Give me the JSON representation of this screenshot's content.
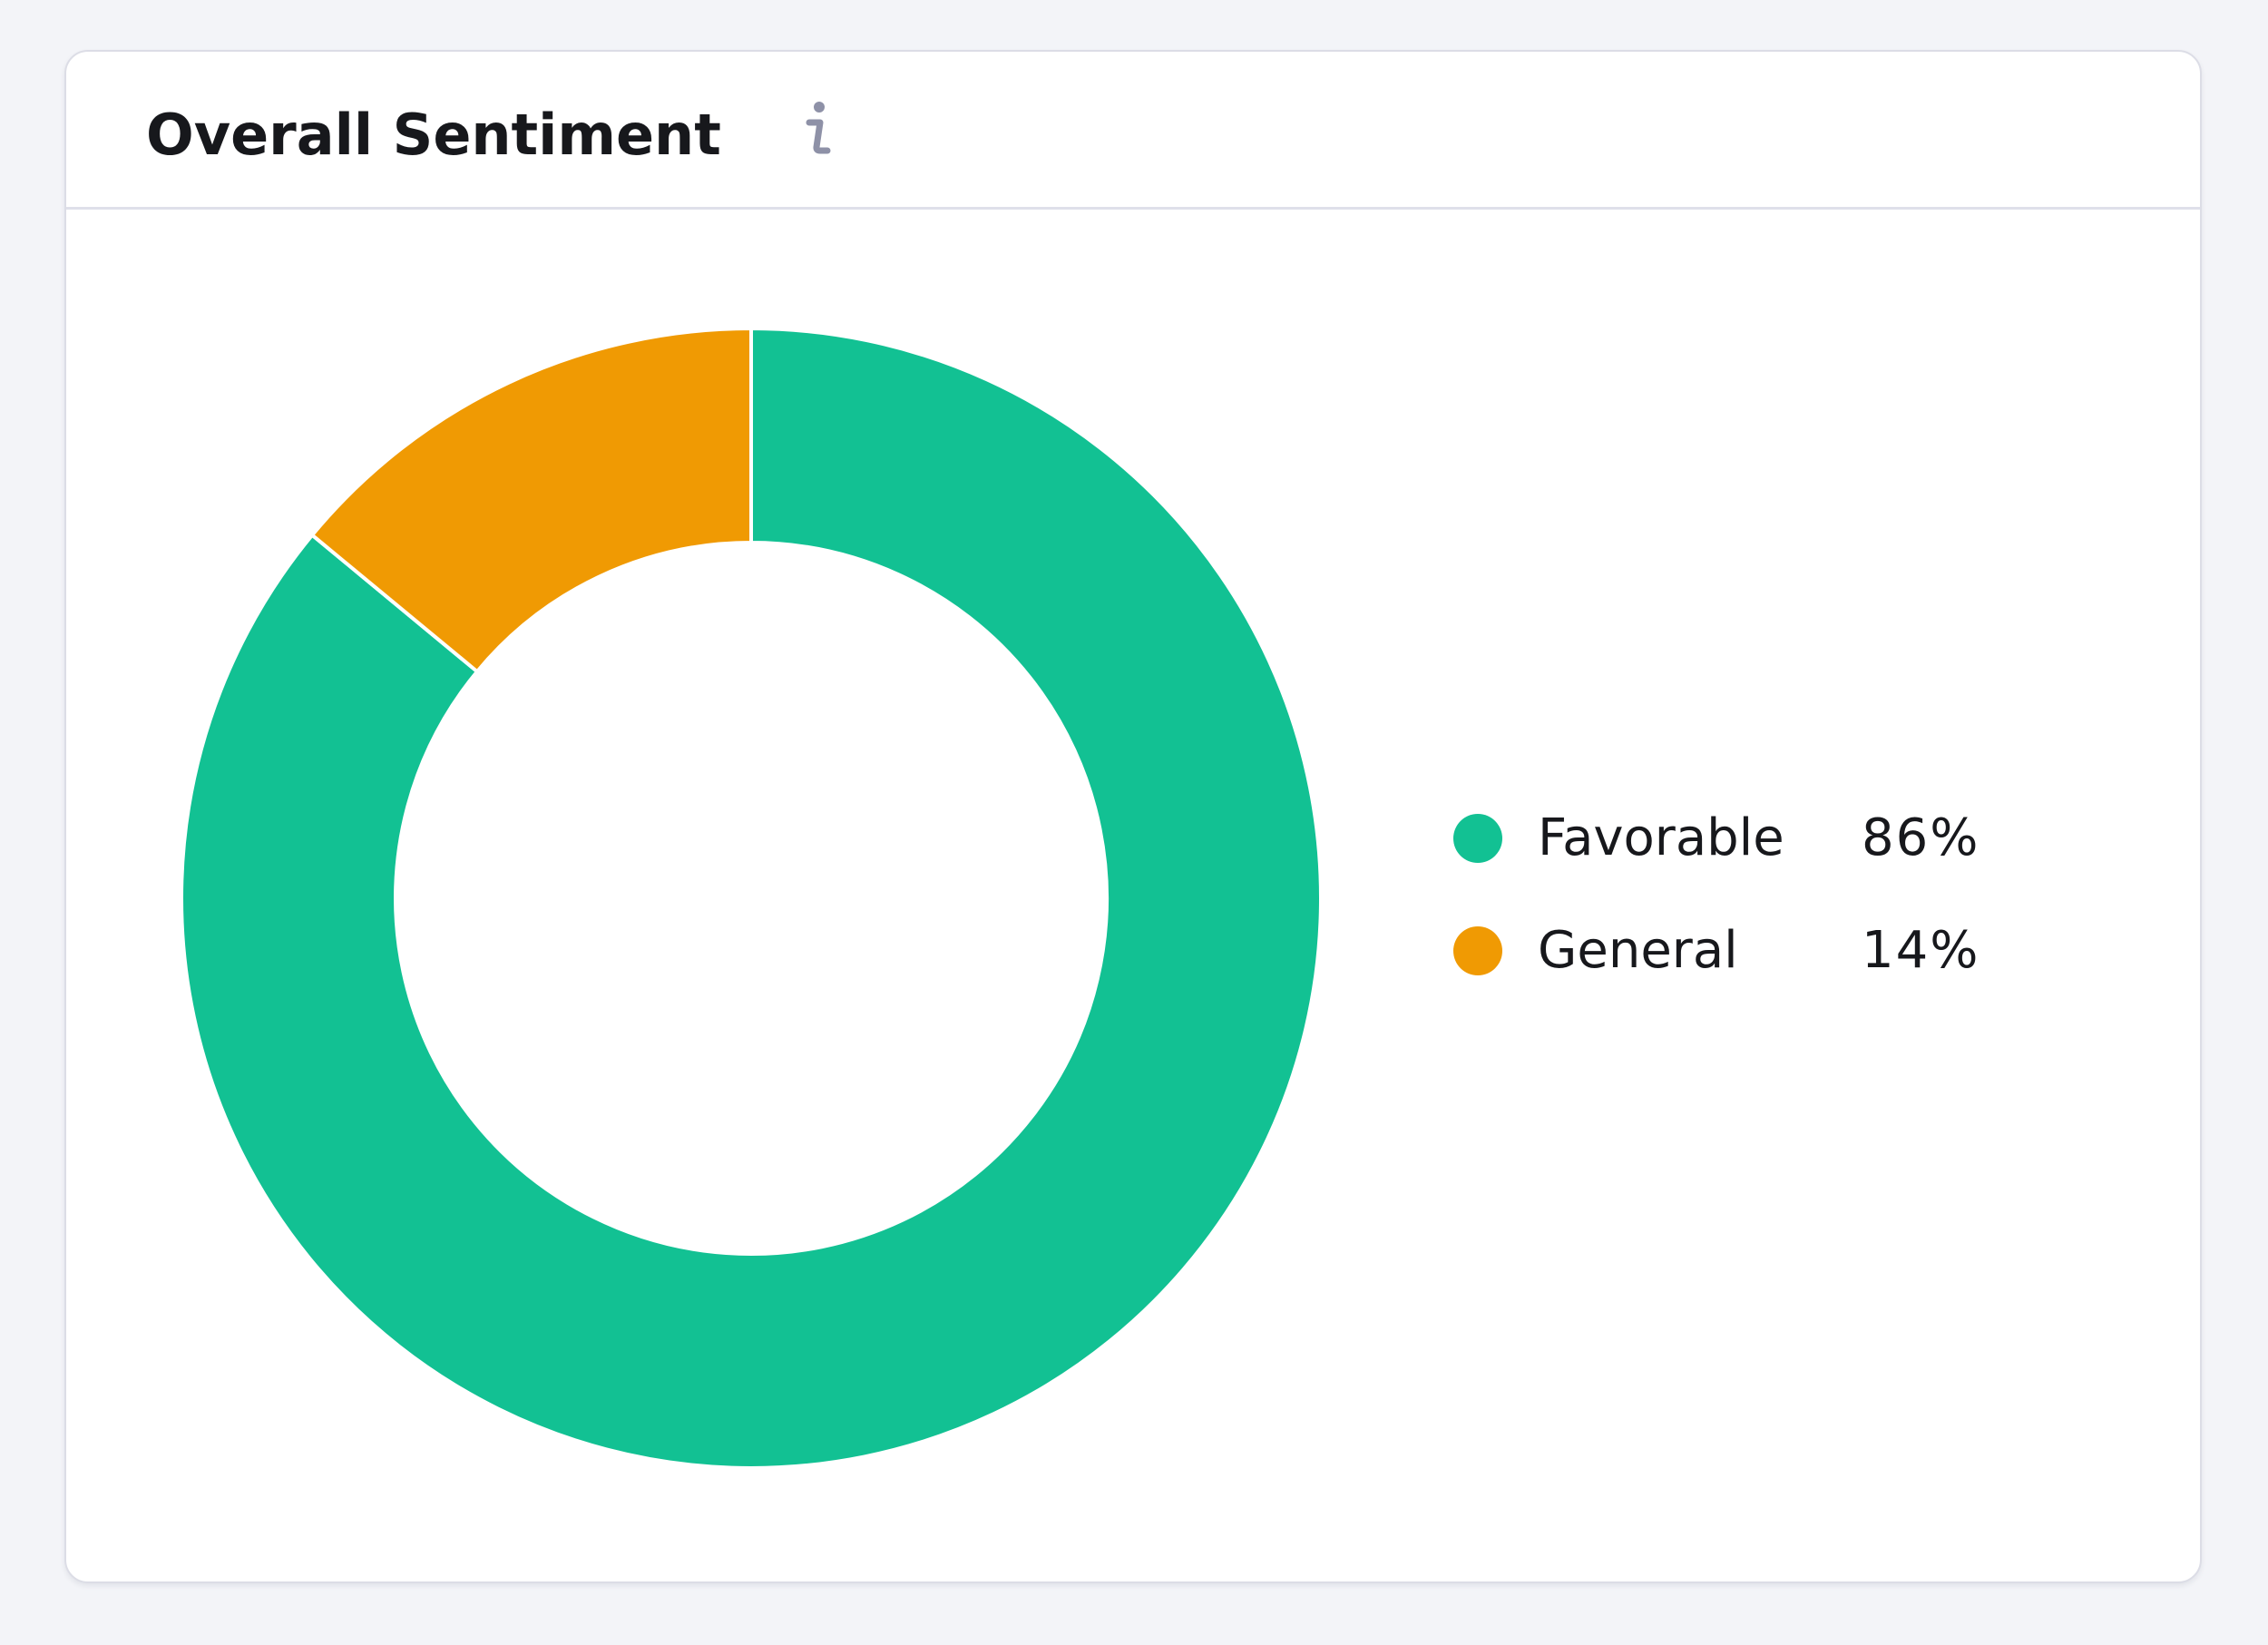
{
  "card": {
    "title": "Overall Sentiment",
    "info_icon": "info-icon"
  },
  "colors": {
    "favorable": "#12c193",
    "general": "#f09a03",
    "background": "#f3f4f8",
    "card": "#ffffff",
    "info_icon": "#8e91a7"
  },
  "chart_data": {
    "type": "pie",
    "title": "Overall Sentiment",
    "donut": true,
    "slices": [
      {
        "label": "Favorable",
        "value": 86,
        "display": "86%",
        "color": "#12c193"
      },
      {
        "label": "General",
        "value": 14,
        "display": "14%",
        "color": "#f09a03"
      }
    ],
    "legend_position": "right"
  }
}
